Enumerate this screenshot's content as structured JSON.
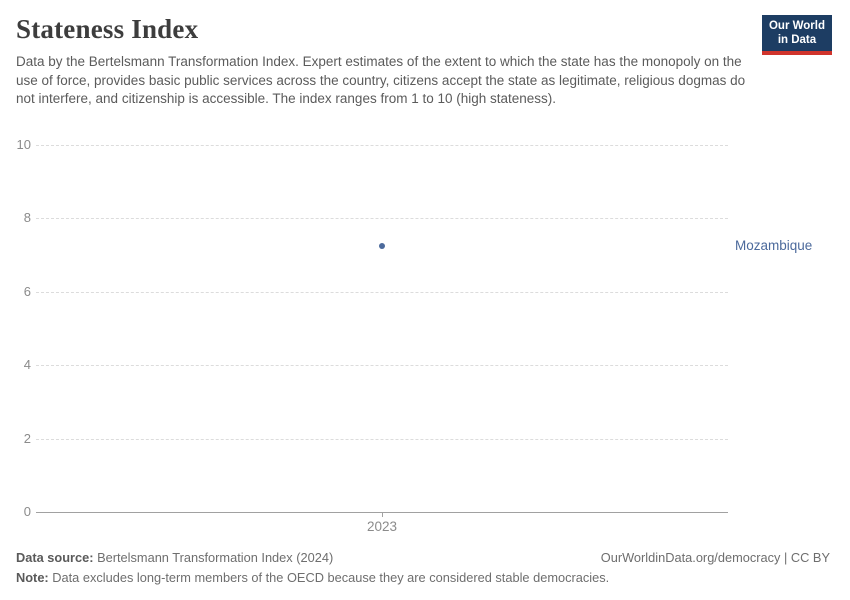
{
  "header": {
    "title": "Stateness Index",
    "subtitle": "Data by the Bertelsmann Transformation Index. Expert estimates of the extent to which the state has the monopoly on the use of force, provides basic public services across the country, citizens accept the state as legitimate, religious dogmas do not interfere, and citizenship is accessible. The index ranges from 1 to 10 (high stateness)."
  },
  "logo": {
    "line1": "Our World",
    "line2": "in Data",
    "bg_color": "#1d3d63",
    "accent_color": "#d0342c"
  },
  "chart_data": {
    "type": "scatter",
    "title": "Stateness Index",
    "series": [
      {
        "name": "Mozambique",
        "color": "#4c6a9c",
        "points": [
          {
            "x": 2023,
            "y": 7.25
          }
        ]
      }
    ],
    "entity_label": "Mozambique",
    "x_ticks": [
      "2023"
    ],
    "y_ticks": [
      0,
      2,
      4,
      6,
      8,
      10
    ],
    "ylim": [
      0,
      10
    ],
    "xlabel": "",
    "ylabel": "",
    "grid": "horizontal-dashed",
    "legend_position": "right-of-plot"
  },
  "footer": {
    "source_label": "Data source:",
    "source_text": " Bertelsmann Transformation Index (2024)",
    "rights_text": "OurWorldinData.org/democracy | CC BY",
    "note_label": "Note:",
    "note_text": " Data excludes long-term members of the OECD because they are considered stable democracies."
  }
}
